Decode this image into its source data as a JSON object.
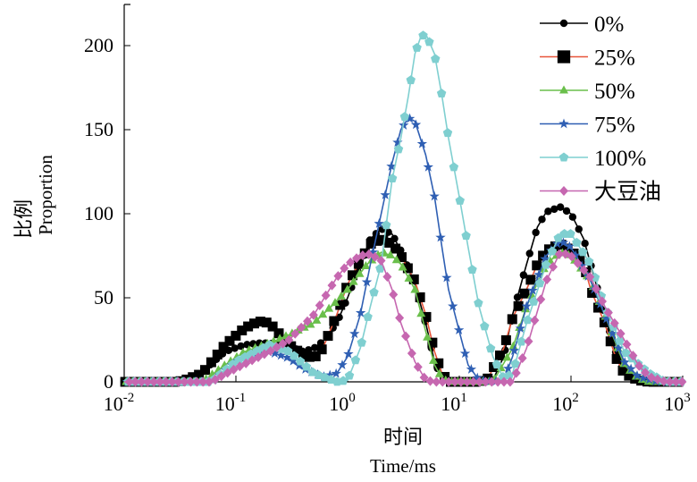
{
  "chart_data": {
    "type": "line",
    "title": "",
    "xlabel_cn": "时间",
    "xlabel": "Time/ms",
    "ylabel_cn": "比例",
    "ylabel": "Proportion",
    "xscale": "log",
    "xlim": [
      0.01,
      1000
    ],
    "ylim": [
      0,
      225
    ],
    "xticks": [
      0.01,
      0.1,
      1,
      10,
      100,
      1000
    ],
    "xtick_labels": [
      {
        "base": "10",
        "exp": "-2"
      },
      {
        "base": "10",
        "exp": "-1"
      },
      {
        "base": "10",
        "exp": "0"
      },
      {
        "base": "10",
        "exp": "1"
      },
      {
        "base": "10",
        "exp": "2"
      },
      {
        "base": "10",
        "exp": "3"
      }
    ],
    "yticks": [
      0,
      50,
      100,
      150,
      200
    ],
    "ytick_labels": [
      "0",
      "50",
      "100",
      "150",
      "200"
    ],
    "grid": false,
    "legend_position": "top-right",
    "series": [
      {
        "name": "0%",
        "color": "#000000",
        "marker_color": "#000000",
        "marker": "circle",
        "points": [
          [
            0.01,
            0
          ],
          [
            0.03,
            0
          ],
          [
            0.035,
            1
          ],
          [
            0.05,
            6
          ],
          [
            0.08,
            18
          ],
          [
            0.12,
            22
          ],
          [
            0.16,
            23
          ],
          [
            0.2,
            23
          ],
          [
            0.25,
            22
          ],
          [
            0.3,
            21
          ],
          [
            0.4,
            18
          ],
          [
            0.5,
            20
          ],
          [
            0.6,
            24
          ],
          [
            0.8,
            35
          ],
          [
            1,
            50
          ],
          [
            1.3,
            70
          ],
          [
            1.6,
            85
          ],
          [
            2,
            91
          ],
          [
            2.5,
            88
          ],
          [
            3,
            78
          ],
          [
            4,
            58
          ],
          [
            5,
            35
          ],
          [
            6,
            12
          ],
          [
            7,
            2
          ],
          [
            8,
            0
          ],
          [
            15,
            0
          ],
          [
            20,
            1
          ],
          [
            25,
            15
          ],
          [
            30,
            40
          ],
          [
            40,
            70
          ],
          [
            50,
            92
          ],
          [
            60,
            101
          ],
          [
            80,
            104
          ],
          [
            100,
            100
          ],
          [
            130,
            85
          ],
          [
            150,
            70
          ],
          [
            200,
            40
          ],
          [
            250,
            18
          ],
          [
            300,
            5
          ],
          [
            400,
            1
          ],
          [
            500,
            0
          ],
          [
            1000,
            0
          ]
        ]
      },
      {
        "name": "25%",
        "color": "#e8553a",
        "marker_color": "#000000",
        "marker": "square",
        "points": [
          [
            0.01,
            0
          ],
          [
            0.03,
            0
          ],
          [
            0.035,
            1
          ],
          [
            0.05,
            5
          ],
          [
            0.08,
            22
          ],
          [
            0.12,
            32
          ],
          [
            0.16,
            36
          ],
          [
            0.2,
            35
          ],
          [
            0.3,
            22
          ],
          [
            0.4,
            16
          ],
          [
            0.5,
            14
          ],
          [
            0.6,
            20
          ],
          [
            0.8,
            40
          ],
          [
            1,
            58
          ],
          [
            1.3,
            72
          ],
          [
            1.6,
            82
          ],
          [
            2,
            85
          ],
          [
            2.5,
            82
          ],
          [
            3,
            75
          ],
          [
            4,
            60
          ],
          [
            5,
            40
          ],
          [
            6,
            18
          ],
          [
            7,
            5
          ],
          [
            8,
            0
          ],
          [
            15,
            0
          ],
          [
            18,
            2
          ],
          [
            25,
            20
          ],
          [
            30,
            38
          ],
          [
            40,
            55
          ],
          [
            50,
            70
          ],
          [
            60,
            78
          ],
          [
            80,
            82
          ],
          [
            100,
            78
          ],
          [
            130,
            70
          ],
          [
            150,
            55
          ],
          [
            200,
            35
          ],
          [
            250,
            15
          ],
          [
            300,
            5
          ],
          [
            400,
            1
          ],
          [
            500,
            0
          ],
          [
            1000,
            0
          ]
        ]
      },
      {
        "name": "50%",
        "color": "#6abf4b",
        "marker_color": "#6abf4b",
        "marker": "triangle",
        "points": [
          [
            0.01,
            0
          ],
          [
            0.05,
            0
          ],
          [
            0.08,
            10
          ],
          [
            0.12,
            18
          ],
          [
            0.2,
            23
          ],
          [
            0.3,
            28
          ],
          [
            0.5,
            35
          ],
          [
            0.8,
            48
          ],
          [
            1,
            55
          ],
          [
            1.5,
            70
          ],
          [
            2,
            77
          ],
          [
            2.5,
            75
          ],
          [
            3,
            70
          ],
          [
            4,
            55
          ],
          [
            5,
            30
          ],
          [
            6,
            10
          ],
          [
            7,
            2
          ],
          [
            8,
            0
          ],
          [
            20,
            0
          ],
          [
            30,
            20
          ],
          [
            40,
            45
          ],
          [
            60,
            70
          ],
          [
            80,
            77
          ],
          [
            100,
            75
          ],
          [
            150,
            60
          ],
          [
            200,
            40
          ],
          [
            300,
            10
          ],
          [
            400,
            2
          ],
          [
            500,
            0
          ],
          [
            1000,
            0
          ]
        ]
      },
      {
        "name": "75%",
        "color": "#2f5fb3",
        "marker_color": "#2f5fb3",
        "marker": "star",
        "points": [
          [
            0.01,
            0
          ],
          [
            0.06,
            0
          ],
          [
            0.1,
            12
          ],
          [
            0.15,
            17
          ],
          [
            0.2,
            18
          ],
          [
            0.3,
            14
          ],
          [
            0.4,
            8
          ],
          [
            0.6,
            3
          ],
          [
            0.8,
            5
          ],
          [
            1,
            15
          ],
          [
            1.3,
            40
          ],
          [
            1.6,
            70
          ],
          [
            2,
            100
          ],
          [
            2.5,
            130
          ],
          [
            3,
            150
          ],
          [
            3.5,
            157
          ],
          [
            4,
            155
          ],
          [
            5,
            135
          ],
          [
            6,
            110
          ],
          [
            7,
            80
          ],
          [
            8,
            55
          ],
          [
            10,
            30
          ],
          [
            12,
            10
          ],
          [
            15,
            1
          ],
          [
            20,
            0
          ],
          [
            25,
            1
          ],
          [
            30,
            15
          ],
          [
            40,
            45
          ],
          [
            60,
            75
          ],
          [
            80,
            84
          ],
          [
            100,
            80
          ],
          [
            150,
            60
          ],
          [
            200,
            40
          ],
          [
            300,
            12
          ],
          [
            400,
            3
          ],
          [
            600,
            0
          ],
          [
            1000,
            0
          ]
        ]
      },
      {
        "name": "100%",
        "color": "#7fcfd0",
        "marker_color": "#7fcfd0",
        "marker": "pentagon",
        "points": [
          [
            0.01,
            0
          ],
          [
            0.06,
            0
          ],
          [
            0.1,
            12
          ],
          [
            0.2,
            22
          ],
          [
            0.3,
            18
          ],
          [
            0.5,
            5
          ],
          [
            0.8,
            0
          ],
          [
            1,
            1
          ],
          [
            1.3,
            20
          ],
          [
            1.6,
            45
          ],
          [
            2,
            70
          ],
          [
            2.5,
            120
          ],
          [
            3,
            145
          ],
          [
            3.5,
            170
          ],
          [
            4,
            195
          ],
          [
            4.5,
            205
          ],
          [
            5,
            207
          ],
          [
            6,
            195
          ],
          [
            7,
            170
          ],
          [
            8,
            145
          ],
          [
            10,
            110
          ],
          [
            12,
            80
          ],
          [
            15,
            45
          ],
          [
            20,
            15
          ],
          [
            25,
            2
          ],
          [
            30,
            5
          ],
          [
            40,
            35
          ],
          [
            60,
            70
          ],
          [
            80,
            88
          ],
          [
            100,
            88
          ],
          [
            150,
            70
          ],
          [
            200,
            45
          ],
          [
            300,
            18
          ],
          [
            500,
            5
          ],
          [
            700,
            0
          ],
          [
            1000,
            0
          ]
        ]
      },
      {
        "name": "大豆油",
        "color": "#c667b0",
        "marker_color": "#c667b0",
        "marker": "diamond",
        "points": [
          [
            0.01,
            0
          ],
          [
            0.06,
            0
          ],
          [
            0.1,
            8
          ],
          [
            0.2,
            18
          ],
          [
            0.3,
            25
          ],
          [
            0.5,
            40
          ],
          [
            0.8,
            62
          ],
          [
            1,
            70
          ],
          [
            1.3,
            75
          ],
          [
            1.6,
            76
          ],
          [
            2,
            72
          ],
          [
            2.5,
            55
          ],
          [
            3,
            35
          ],
          [
            4,
            12
          ],
          [
            5,
            1
          ],
          [
            6,
            0
          ],
          [
            30,
            0
          ],
          [
            40,
            20
          ],
          [
            60,
            60
          ],
          [
            80,
            77
          ],
          [
            100,
            75
          ],
          [
            150,
            62
          ],
          [
            200,
            45
          ],
          [
            300,
            25
          ],
          [
            400,
            10
          ],
          [
            500,
            3
          ],
          [
            700,
            0
          ],
          [
            1000,
            0
          ]
        ]
      }
    ]
  }
}
